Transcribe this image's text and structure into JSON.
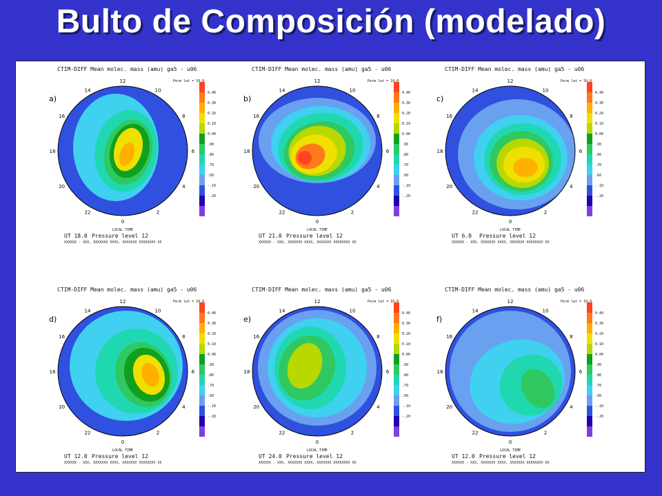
{
  "slide": {
    "title": "Bulto de Composición (modelado)"
  },
  "colors": {
    "background": "#3333cc",
    "scale": [
      "#ff4422",
      "#ff7a1a",
      "#ffb000",
      "#f0e000",
      "#b8d800",
      "#10a020",
      "#30c860",
      "#20d8b0",
      "#40d0f0",
      "#6aa0f0",
      "#3050e0",
      "#2000b0",
      "#8040e0"
    ]
  },
  "panels": [
    {
      "label": "a)",
      "header": "CTIM-DIFF  Mean molec. mass (amu)   ga5 - u06",
      "corner": "Perm lat = 10.0",
      "ut": "UT  18.0",
      "pressure": "Pressure level 12",
      "footer": "XXXXXX - XXX, XXXXXXX XXXX, XXXXXXX XXXXXXXX XX",
      "local_time": "LOCAL TIME",
      "ticks": [
        "12",
        "10",
        "8",
        "6",
        "4",
        "2",
        "0",
        "22",
        "20",
        "18",
        "16",
        "14"
      ],
      "scale_labels": [
        "0.40",
        "0.30",
        "0.20",
        "0.10",
        "0.00",
        ".90",
        ".80",
        ".70",
        ".60",
        "-.10",
        "-.20"
      ]
    },
    {
      "label": "b)",
      "header": "CTIM-DIFF  Mean molec. mass (amu)   ga5 - u06",
      "corner": "Perm lat = 10.0",
      "ut": "UT  21.0",
      "pressure": "Pressure level 12",
      "footer": "XXXXXX - XXX, XXXXXXX XXXX, XXXXXXX XXXXXXXX XX",
      "local_time": "LOCAL TIME",
      "ticks": [
        "12",
        "10",
        "8",
        "6",
        "4",
        "2",
        "0",
        "22",
        "20",
        "18",
        "16",
        "14"
      ],
      "scale_labels": [
        "0.40",
        "0.30",
        "0.20",
        "0.10",
        "0.00",
        ".90",
        ".80",
        ".70",
        ".60",
        "-.10",
        "-.20"
      ]
    },
    {
      "label": "c)",
      "header": "CTIM-DIFF  Mean molec. mass (amu)   ga5 - u06",
      "corner": "Perm lat = 10.0",
      "ut": "UT   6.0",
      "pressure": "Pressure level 12",
      "footer": "XXXXXX - XXX, XXXXXXX XXXX, XXXXXXX XXXXXXXX XX",
      "local_time": "LOCAL TIME",
      "ticks": [
        "12",
        "10",
        "8",
        "6",
        "4",
        "2",
        "0",
        "22",
        "20",
        "18",
        "16",
        "14"
      ],
      "scale_labels": [
        "0.40",
        "0.30",
        "0.20",
        "0.10",
        "0.00",
        ".90",
        ".80",
        ".70",
        ".60",
        "-.10",
        "-.20"
      ]
    },
    {
      "label": "d)",
      "header": "CTIM-DIFF  Mean molec. mass (amu)   ga5 - u06",
      "corner": "Perm lat = 10.0",
      "ut": "UT  12.0",
      "pressure": "Pressure level 12",
      "footer": "XXXXXX - XXX, XXXXXXX XXXX, XXXXXXX XXXXXXXX XX",
      "local_time": "LOCAL TIME",
      "ticks": [
        "12",
        "10",
        "8",
        "6",
        "4",
        "2",
        "0",
        "22",
        "20",
        "18",
        "16",
        "14"
      ],
      "scale_labels": [
        "0.40",
        "0.30",
        "0.20",
        "0.10",
        "0.00",
        ".90",
        ".80",
        ".70",
        ".60",
        "-.10",
        "-.20"
      ]
    },
    {
      "label": "e)",
      "header": "CTIM-DIFF  Mean molec. mass (amu)   ga5 - u06",
      "corner": "Perm lat = 10.0",
      "ut": "UT  24.0",
      "pressure": "Pressure level 12",
      "footer": "XXXXXX - XXX, XXXXXXX XXXX, XXXXXXX XXXXXXXX XX",
      "local_time": "LOCAL TIME",
      "ticks": [
        "12",
        "10",
        "8",
        "6",
        "4",
        "2",
        "0",
        "22",
        "20",
        "18",
        "16",
        "14"
      ],
      "scale_labels": [
        "0.40",
        "0.30",
        "0.20",
        "0.10",
        "0.00",
        ".90",
        ".80",
        ".70",
        ".60",
        "-.10",
        "-.20"
      ]
    },
    {
      "label": "f)",
      "header": "CTIM-DIFF  Mean molec. mass (amu)   ga5 - u06",
      "corner": "Perm lat = 10.0",
      "ut": "UT  12.0",
      "pressure": "Pressure level 12",
      "footer": "XXXXXX - XXX, XXXXXXX XXXX, XXXXXXX XXXXXXXX XX",
      "local_time": "LOCAL TIME",
      "ticks": [
        "12",
        "10",
        "8",
        "6",
        "4",
        "2",
        "0",
        "22",
        "20",
        "18",
        "16",
        "14"
      ],
      "scale_labels": [
        "0.40",
        "0.30",
        "0.20",
        "0.10",
        "0.00",
        ".90",
        ".80",
        ".70",
        ".60",
        "-.10",
        "-.20"
      ]
    }
  ]
}
